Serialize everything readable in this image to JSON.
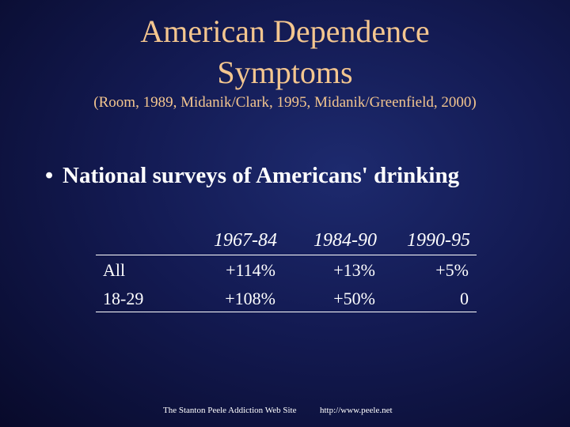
{
  "slide": {
    "title_line1": "American Dependence",
    "title_line2": "Symptoms",
    "subtitle": "(Room, 1989, Midanik/Clark, 1995, Midanik/Greenfield, 2000)",
    "bullet_symbol": "•",
    "bullet_text": "National surveys of Americans' drinking"
  },
  "table": {
    "columns": [
      "1967-84",
      "1984-90",
      "1990-95"
    ],
    "rows": [
      {
        "label": "All",
        "values": [
          "+114%",
          "+13%",
          "+5%"
        ]
      },
      {
        "label": "18-29",
        "values": [
          "+108%",
          "+50%",
          "0"
        ]
      }
    ]
  },
  "footer": {
    "site": "The Stanton Peele Addiction Web Site",
    "url": "http://www.peele.net"
  },
  "colors": {
    "title": "#f4c68f",
    "text": "#ffffff",
    "background": "#131a52"
  }
}
